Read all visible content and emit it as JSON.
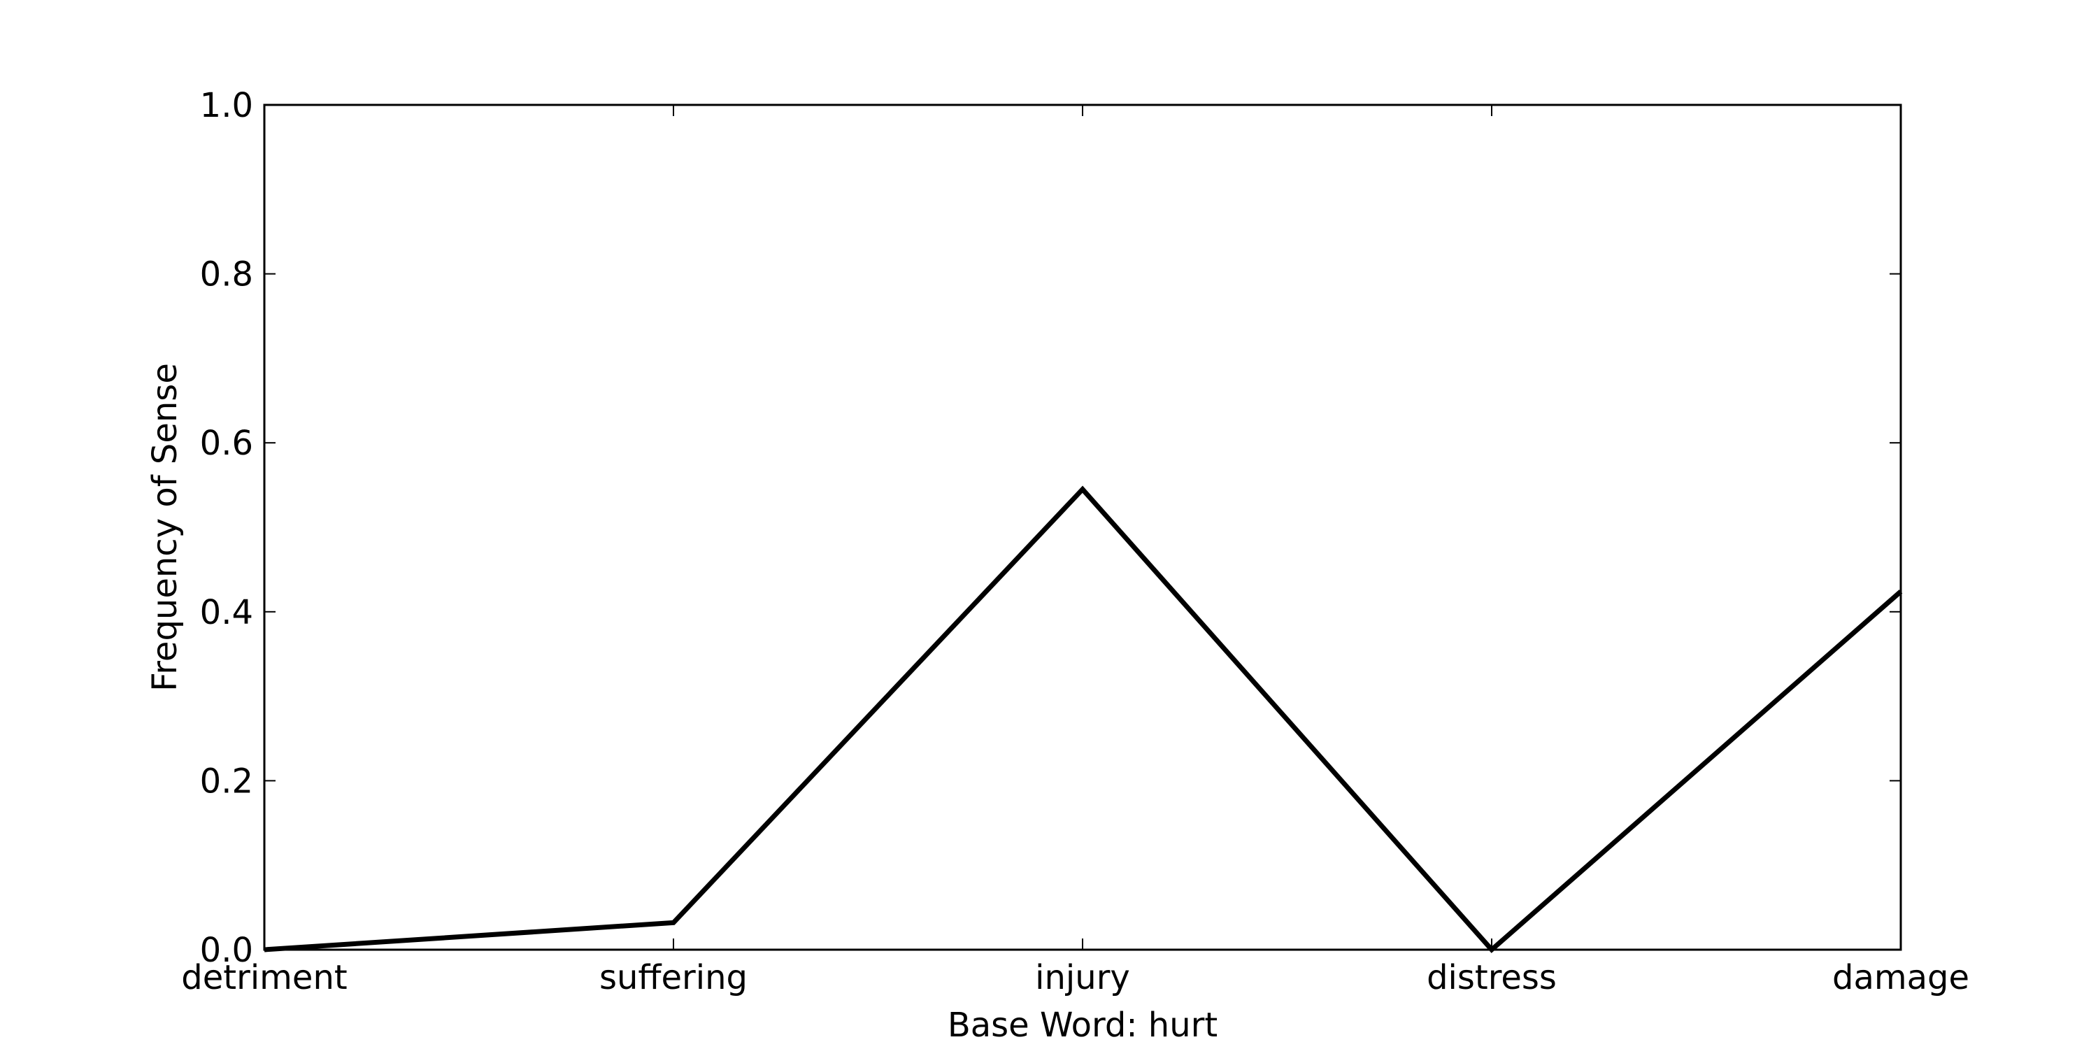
{
  "chart_data": {
    "type": "line",
    "categories": [
      "detriment",
      "suffering",
      "injury",
      "distress",
      "damage"
    ],
    "series": [
      {
        "values": [
          0.0,
          0.032,
          0.545,
          0.0,
          0.424
        ]
      }
    ],
    "xlabel": "Base Word: hurt",
    "ylabel": "Frequency of Sense",
    "ylim": [
      0.0,
      1.0
    ],
    "yticks": [
      "0.0",
      "0.2",
      "0.4",
      "0.6",
      "0.8",
      "1.0"
    ],
    "grid": false,
    "line_color": "#000000"
  }
}
